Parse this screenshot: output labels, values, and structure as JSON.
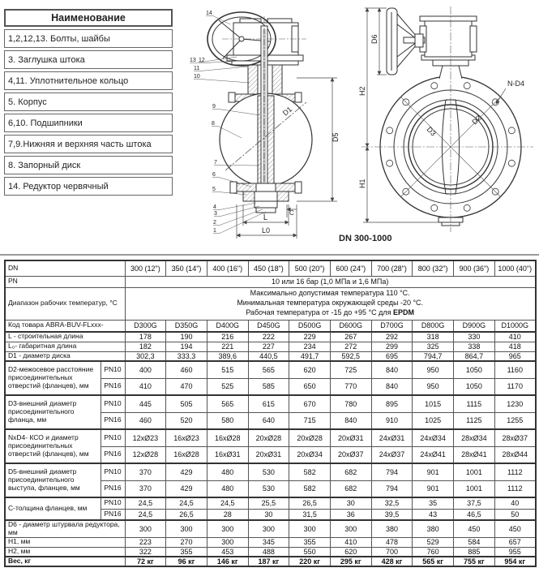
{
  "parts_table": {
    "header": "Наименование",
    "rows": [
      "1,2,12,13. Болты, шайбы",
      "3. Заглушка штока",
      "4,11. Уплотнительное кольцо",
      "5. Корпус",
      "6,10. Подшипники",
      "7,9.Нижняя и верхняя часть штока",
      "8. Запорный диск",
      "14. Редуктор червячный"
    ]
  },
  "drawings": {
    "caption": "DN 300-1000",
    "left_view": {
      "callouts": [
        "14",
        "13",
        "12",
        "11",
        "10",
        "9",
        "8",
        "7",
        "6",
        "5",
        "4",
        "3",
        "2",
        "1"
      ],
      "dims": {
        "D1": "D1",
        "D5": "D5",
        "L": "L",
        "L0": "L0",
        "C": "C"
      }
    },
    "front_view": {
      "dims": {
        "D6": "D6",
        "H2": "H2",
        "H1": "H1",
        "ND4": "N-D4",
        "D3": "D3",
        "D2": "D2"
      }
    }
  },
  "spec_table": {
    "dn_label": "DN",
    "dn_values": [
      "300 (12\")",
      "350 (14\")",
      "400 (16\")",
      "450 (18\")",
      "500 (20\")",
      "600 (24\")",
      "700 (28\")",
      "800 (32\")",
      "900 (36\")",
      "1000 (40\")"
    ],
    "pn_label": "PN",
    "pn_value": "10 или 16 бар (1,0 МПа и 1,6 МПа)",
    "temp_label": "Диапазон рабочих температур, °C",
    "temp_lines": [
      "Максимально допустимая температура 110 °C.",
      "Минимальная температура окружающей среды -20 °C."
    ],
    "temp_line3_prefix": "Рабочая температура от -15 до +95 °C для",
    "temp_line3_bold": "EPDM",
    "pn_sub": [
      "PN10",
      "PN16"
    ],
    "rows": [
      {
        "label": "Код товара ABRA-BUV-FLxxx-",
        "values": [
          "D300G",
          "D350G",
          "D400G",
          "D450G",
          "D500G",
          "D600G",
          "D700G",
          "D800G",
          "D900G",
          "D1000G"
        ]
      },
      {
        "label": "L - строительная длина",
        "values": [
          "178",
          "190",
          "216",
          "222",
          "229",
          "267",
          "292",
          "318",
          "330",
          "410"
        ]
      },
      {
        "label": "L₀- габаритная длина",
        "values": [
          "182",
          "194",
          "221",
          "227",
          "234",
          "272",
          "299",
          "325",
          "338",
          "418"
        ]
      },
      {
        "label": "D1 - диаметр диска",
        "values": [
          "302,3",
          "333,3",
          "389,6",
          "440,5",
          "491,7",
          "592,5",
          "695",
          "794,7",
          "864,7",
          "965"
        ]
      },
      {
        "label": "D2-межосевое расстояние присоединительных отверстий (фланцев), мм",
        "pn10": [
          "400",
          "460",
          "515",
          "565",
          "620",
          "725",
          "840",
          "950",
          "1050",
          "1160"
        ],
        "pn16": [
          "410",
          "470",
          "525",
          "585",
          "650",
          "770",
          "840",
          "950",
          "1050",
          "1170"
        ]
      },
      {
        "label": "D3-внешний диаметр присоединительного фланца, мм",
        "pn10": [
          "445",
          "505",
          "565",
          "615",
          "670",
          "780",
          "895",
          "1015",
          "1115",
          "1230"
        ],
        "pn16": [
          "460",
          "520",
          "580",
          "640",
          "715",
          "840",
          "910",
          "1025",
          "1125",
          "1255"
        ]
      },
      {
        "label": "NxD4- КСО и диаметр присоединительных отверстий (фланцев), мм",
        "pn10": [
          "12xØ23",
          "16xØ23",
          "16xØ28",
          "20xØ28",
          "20xØ28",
          "20xØ31",
          "24xØ31",
          "24xØ34",
          "28xØ34",
          "28xØ37"
        ],
        "pn16": [
          "12xØ28",
          "16xØ28",
          "16xØ31",
          "20xØ31",
          "20xØ34",
          "20xØ37",
          "24xØ37",
          "24xØ41",
          "28xØ41",
          "28xØ44"
        ]
      },
      {
        "label": "D5-внешний диаметр присоединительного выступа, фланцев, мм",
        "pn10": [
          "370",
          "429",
          "480",
          "530",
          "582",
          "682",
          "794",
          "901",
          "1001",
          "1112"
        ],
        "pn16": [
          "370",
          "429",
          "480",
          "530",
          "582",
          "682",
          "794",
          "901",
          "1001",
          "1112"
        ]
      },
      {
        "label": "C-толщина фланцев, мм",
        "pn10": [
          "24,5",
          "24,5",
          "24,5",
          "25,5",
          "26,5",
          "30",
          "32,5",
          "35",
          "37,5",
          "40"
        ],
        "pn16": [
          "24,5",
          "26,5",
          "28",
          "30",
          "31,5",
          "36",
          "39,5",
          "43",
          "46,5",
          "50"
        ]
      },
      {
        "label": "D6 - диаметр штурвала редуктора, мм",
        "values": [
          "300",
          "300",
          "300",
          "300",
          "300",
          "300",
          "380",
          "380",
          "450",
          "450"
        ]
      },
      {
        "label": "H1, мм",
        "values": [
          "223",
          "270",
          "300",
          "345",
          "355",
          "410",
          "478",
          "529",
          "584",
          "657"
        ]
      },
      {
        "label": "H2, мм",
        "values": [
          "322",
          "355",
          "453",
          "488",
          "550",
          "620",
          "700",
          "760",
          "885",
          "955"
        ]
      },
      {
        "label": "Вес, кг",
        "values": [
          "72 кг",
          "96 кг",
          "146 кг",
          "187 кг",
          "220 кг",
          "295 кг",
          "428 кг",
          "565 кг",
          "755 кг",
          "954 кг"
        ]
      }
    ]
  }
}
